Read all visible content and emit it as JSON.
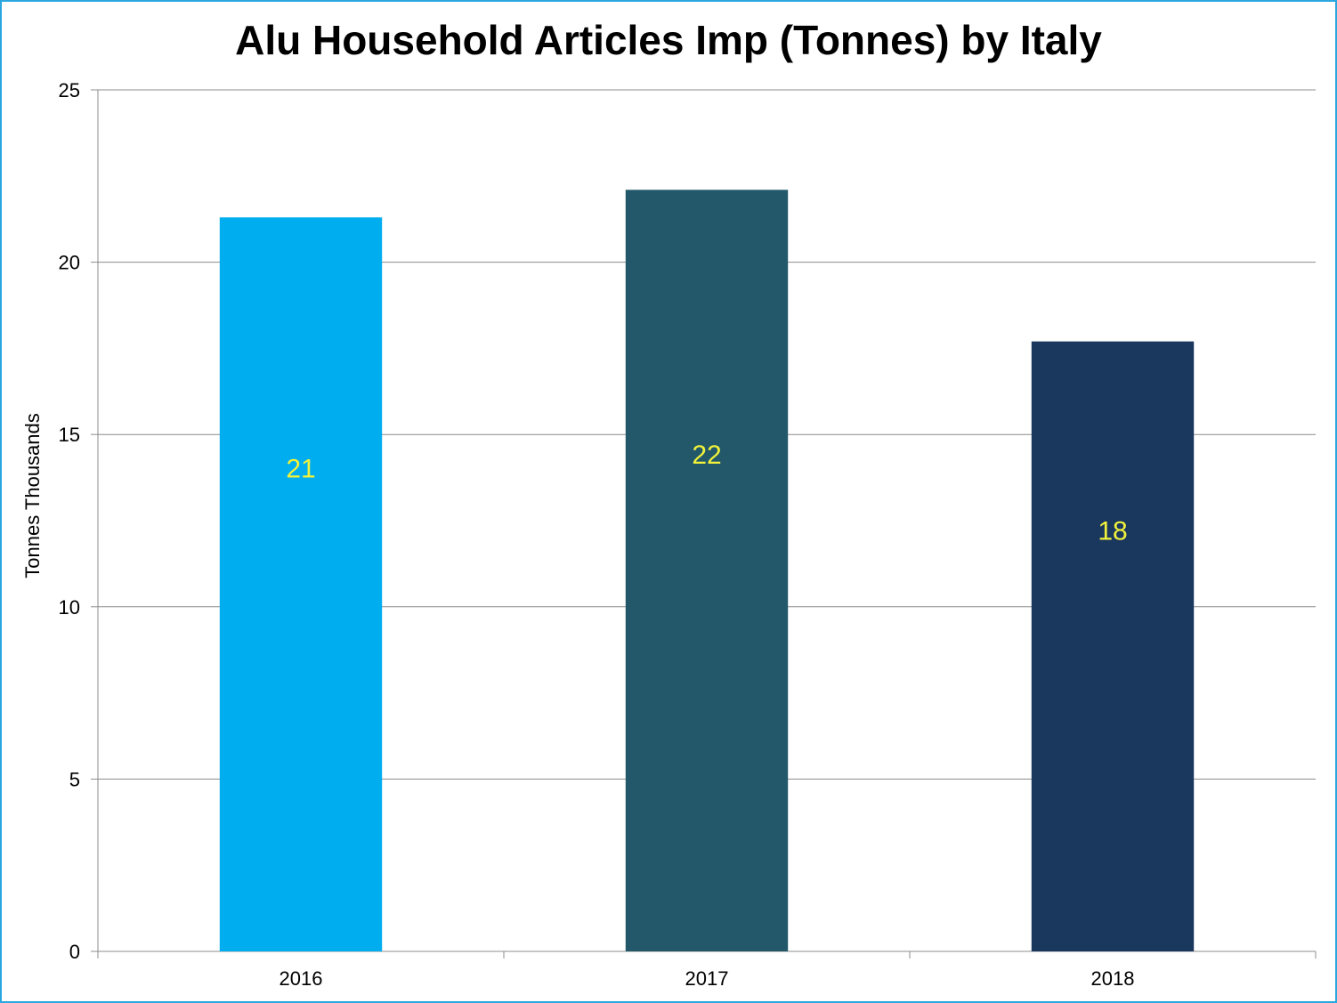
{
  "chart_data": {
    "type": "bar",
    "title": "Alu Household Articles Imp (Tonnes) by Italy",
    "xlabel": "",
    "ylabel": "Tonnes Thousands",
    "categories": [
      "2016",
      "2017",
      "2018"
    ],
    "values": [
      21.3,
      22.1,
      17.7
    ],
    "data_labels": [
      "21",
      "22",
      "18"
    ],
    "bar_colors": [
      "#00aeef",
      "#22586a",
      "#1a375e"
    ],
    "data_label_color": "#f2f23a",
    "ylim": [
      0,
      25
    ],
    "yticks": [
      "0",
      "5",
      "10",
      "15",
      "20",
      "25"
    ],
    "grid": true,
    "legend": "none",
    "border_color": "#2aa7df"
  }
}
